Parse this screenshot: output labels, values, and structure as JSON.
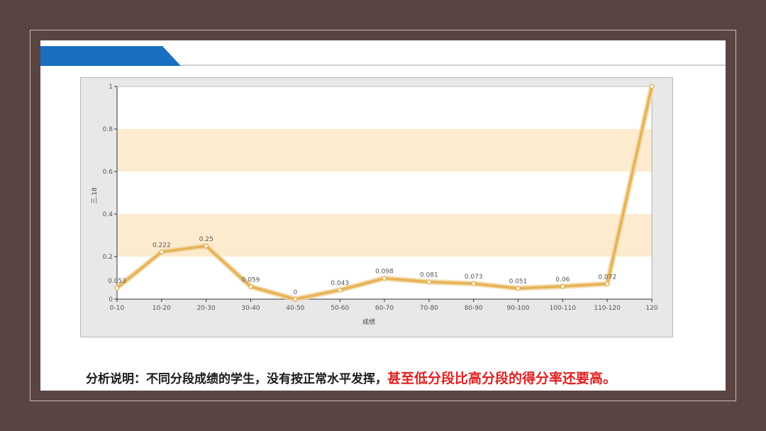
{
  "colors": {
    "background": "#5a4442",
    "slide": "#ffffff",
    "header_blue": "#1a6fc3",
    "header_line": "#9aa8b4",
    "band": "#fdebd0",
    "line": "#e8b45a",
    "caption_black": "#1b1b1b",
    "caption_red": "#e02020"
  },
  "caption": {
    "part1": "分析说明：不同分段成绩的学生，没有按正常水平发挥，",
    "part2": "甚至低分段比高分段的得分率还要高。"
  },
  "chart_data": {
    "type": "line",
    "xlabel": "成绩",
    "ylabel": "三.18",
    "ylim": [
      0,
      1
    ],
    "yticks": [
      "0",
      "0.2",
      "0.4",
      "0.6",
      "0.8",
      "1"
    ],
    "ytick_values": [
      0,
      0.2,
      0.4,
      0.6,
      0.8,
      1
    ],
    "bands": [
      [
        0.2,
        0.4
      ],
      [
        0.6,
        0.8
      ]
    ],
    "categories": [
      "0-10",
      "10-20",
      "20-30",
      "30-40",
      "40-50",
      "50-60",
      "60-70",
      "70-80",
      "80-90",
      "90-100",
      "100-110",
      "110-120",
      "120"
    ],
    "values": [
      0.053,
      0.222,
      0.25,
      0.059,
      0,
      0.043,
      0.098,
      0.081,
      0.073,
      0.051,
      0.06,
      0.072,
      1
    ],
    "data_labels": [
      "0.053",
      "0.222",
      "0.25",
      "0.059",
      "0",
      "0.043",
      "0.098",
      "0.081",
      "0.073",
      "0.051",
      "0.06",
      "0.072",
      ""
    ],
    "grid": false,
    "legend": "none"
  }
}
